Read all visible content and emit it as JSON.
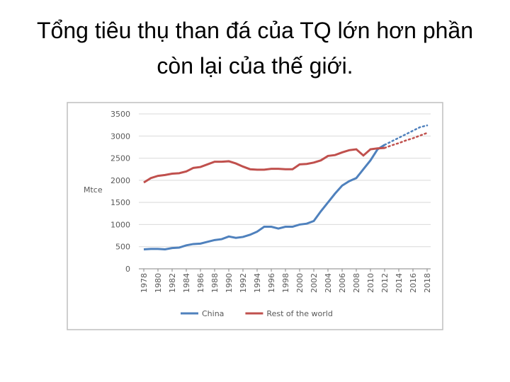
{
  "chart_data": {
    "type": "line",
    "title": "Tổng tiêu thụ than đá của TQ lớn hơn phần còn lại của thế giới.",
    "y_label": "Mtce",
    "x": [
      1978,
      1979,
      1980,
      1981,
      1982,
      1983,
      1984,
      1985,
      1986,
      1987,
      1988,
      1989,
      1990,
      1991,
      1992,
      1993,
      1994,
      1995,
      1996,
      1997,
      1998,
      1999,
      2000,
      2001,
      2002,
      2003,
      2004,
      2005,
      2006,
      2007,
      2008,
      2009,
      2010,
      2011,
      2012,
      2013,
      2014,
      2015,
      2016,
      2017,
      2018
    ],
    "series": [
      {
        "name": "China",
        "color": "#4f81bd",
        "values": [
          440,
          450,
          450,
          440,
          470,
          480,
          530,
          560,
          570,
          610,
          650,
          670,
          730,
          700,
          720,
          770,
          840,
          950,
          950,
          910,
          950,
          950,
          1000,
          1020,
          1080,
          1300,
          1500,
          1700,
          1880,
          1980,
          2050,
          2250,
          2450,
          2700,
          2800,
          2880,
          2960,
          3040,
          3120,
          3200,
          3240
        ]
      },
      {
        "name": "Rest of the world",
        "color": "#c0504d",
        "values": [
          1950,
          2050,
          2100,
          2120,
          2150,
          2160,
          2200,
          2280,
          2300,
          2360,
          2420,
          2420,
          2430,
          2380,
          2310,
          2250,
          2240,
          2240,
          2260,
          2260,
          2250,
          2250,
          2360,
          2370,
          2400,
          2450,
          2550,
          2570,
          2630,
          2680,
          2700,
          2560,
          2700,
          2720,
          2730,
          2790,
          2840,
          2900,
          2950,
          3010,
          3070
        ]
      }
    ],
    "projection_from": 2012,
    "xlim": [
      1978,
      2018
    ],
    "xticks": [
      1978,
      1980,
      1982,
      1984,
      1986,
      1988,
      1990,
      1992,
      1994,
      1996,
      1998,
      2000,
      2002,
      2004,
      2006,
      2008,
      2010,
      2012,
      2014,
      2016,
      2018
    ],
    "ylim": [
      0,
      3500
    ],
    "yticks": [
      0,
      500,
      1000,
      1500,
      2000,
      2500,
      3000,
      3500
    ],
    "grid": true,
    "legend": "bottom"
  }
}
